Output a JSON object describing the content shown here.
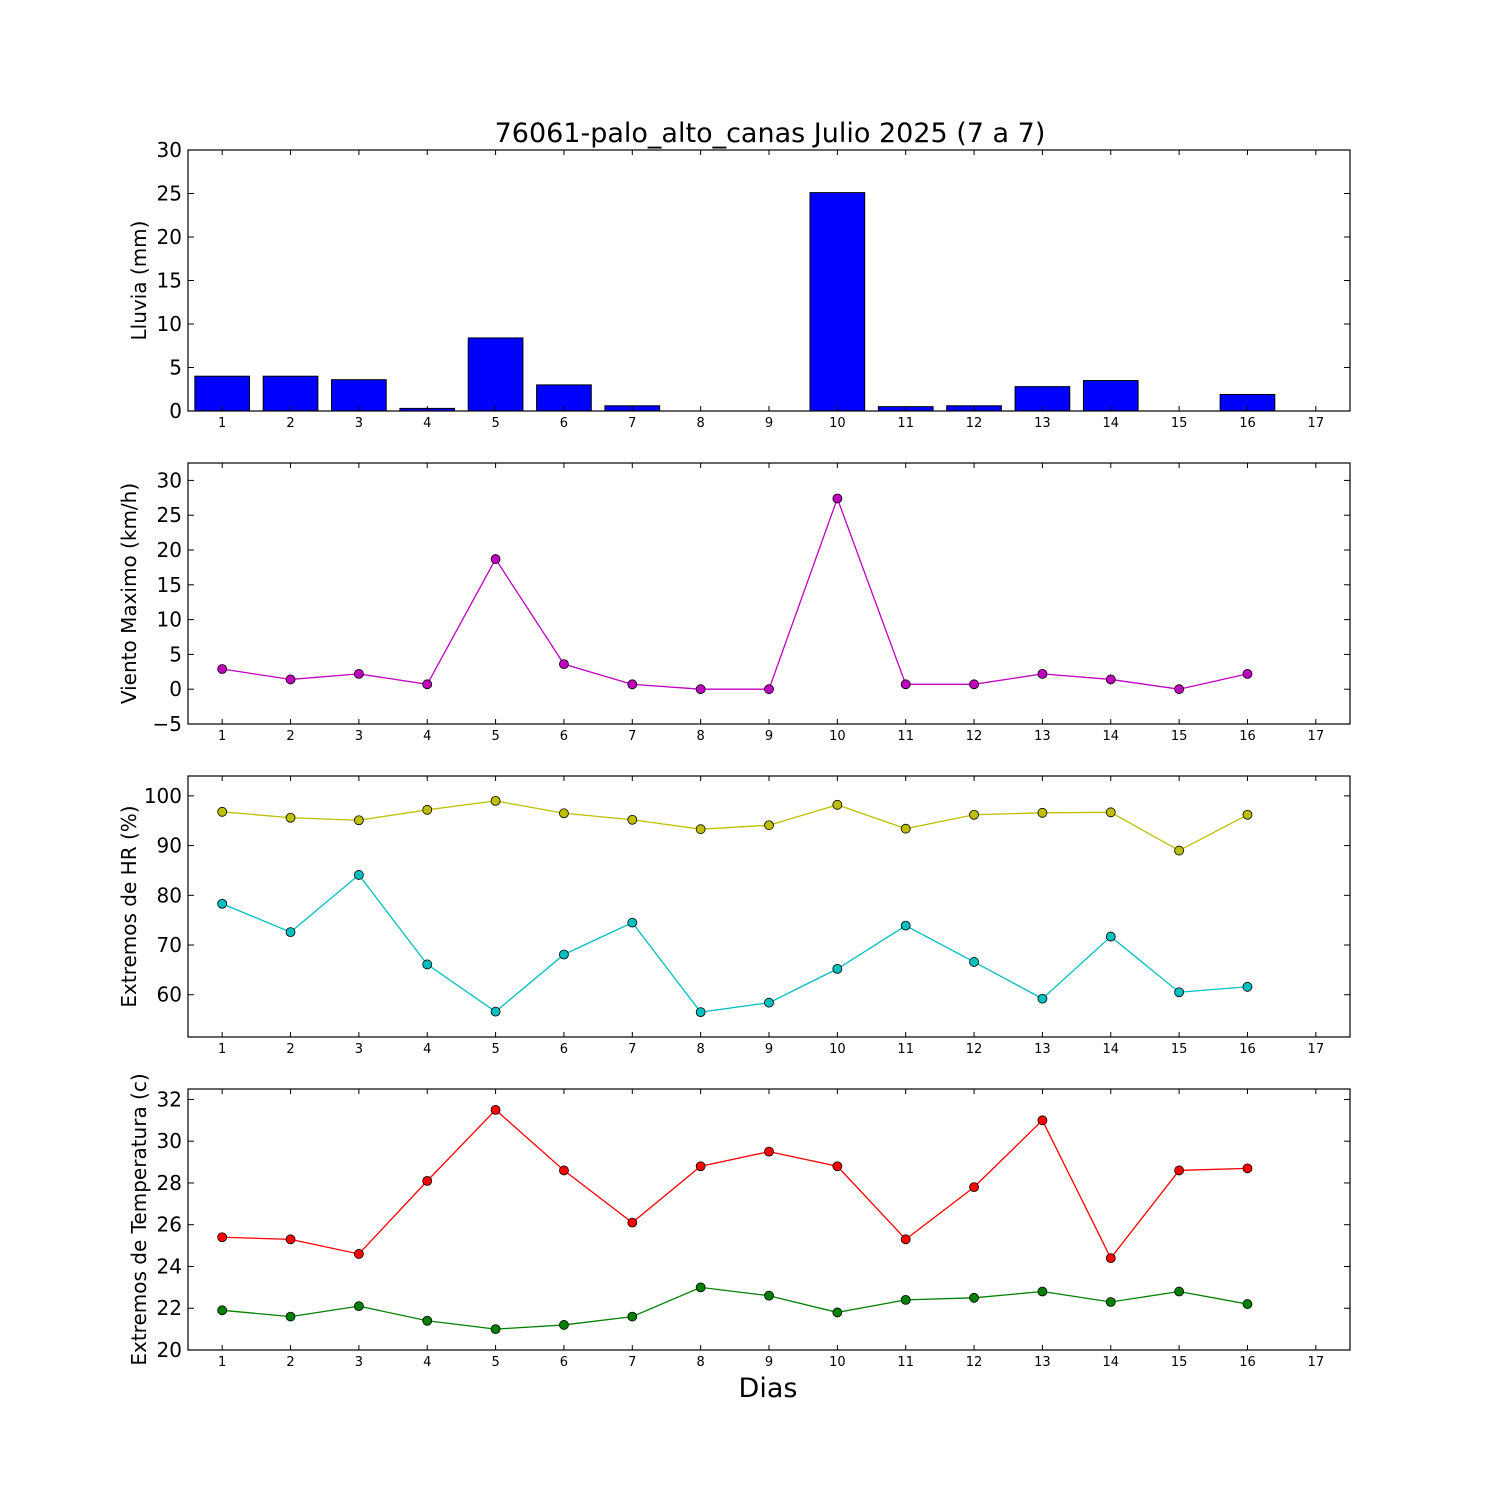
{
  "chart_data": [
    {
      "type": "bar",
      "title": "76061-palo_alto_canas Julio 2025  (7 a 7)",
      "ylabel": "Lluvia (mm)",
      "xlabel": "",
      "x": [
        1,
        2,
        3,
        4,
        5,
        6,
        7,
        8,
        9,
        10,
        11,
        12,
        13,
        14,
        15,
        16
      ],
      "xticks": [
        "1",
        "2",
        "3",
        "4",
        "5",
        "6",
        "7",
        "8",
        "9",
        "10",
        "11",
        "12",
        "13",
        "14",
        "15",
        "16",
        "17"
      ],
      "xlim": [
        0.5,
        17.5
      ],
      "ylim": [
        0,
        30
      ],
      "yticks": [
        "0",
        "5",
        "10",
        "15",
        "20",
        "25",
        "30"
      ],
      "series": [
        {
          "values": [
            4.0,
            4.0,
            3.6,
            0.3,
            8.4,
            3.0,
            0.6,
            0,
            0,
            25.1,
            0.5,
            0.6,
            2.8,
            3.5,
            0,
            1.9
          ],
          "color": "#0000ff"
        }
      ],
      "grid": false
    },
    {
      "type": "line",
      "ylabel": "Viento Maximo (km/h)",
      "xlabel": "",
      "x": [
        1,
        2,
        3,
        4,
        5,
        6,
        7,
        8,
        9,
        10,
        11,
        12,
        13,
        14,
        15,
        16
      ],
      "xticks": [
        "1",
        "2",
        "3",
        "4",
        "5",
        "6",
        "7",
        "8",
        "9",
        "10",
        "11",
        "12",
        "13",
        "14",
        "15",
        "16",
        "17"
      ],
      "xlim": [
        0.5,
        17.5
      ],
      "ylim": [
        -5,
        32.5
      ],
      "yticks": [
        "−5",
        "0",
        "5",
        "10",
        "15",
        "20",
        "25",
        "30"
      ],
      "series": [
        {
          "values": [
            2.9,
            1.4,
            2.2,
            0.7,
            18.7,
            3.6,
            0.7,
            0,
            0,
            27.4,
            0.7,
            0.7,
            2.2,
            1.4,
            0,
            2.2
          ],
          "color": "#bf00bf"
        }
      ],
      "grid": false
    },
    {
      "type": "line",
      "ylabel": "Extremos de HR (%)",
      "xlabel": "",
      "x": [
        1,
        2,
        3,
        4,
        5,
        6,
        7,
        8,
        9,
        10,
        11,
        12,
        13,
        14,
        15,
        16
      ],
      "xticks": [
        "1",
        "2",
        "3",
        "4",
        "5",
        "6",
        "7",
        "8",
        "9",
        "10",
        "11",
        "12",
        "13",
        "14",
        "15",
        "16",
        "17"
      ],
      "xlim": [
        0.5,
        17.5
      ],
      "ylim": [
        51.5,
        104
      ],
      "yticks": [
        "60",
        "70",
        "80",
        "90",
        "100"
      ],
      "series": [
        {
          "values": [
            96.8,
            95.6,
            95.1,
            97.2,
            99.0,
            96.5,
            95.2,
            93.3,
            94.1,
            98.2,
            93.4,
            96.2,
            96.6,
            96.7,
            89.0,
            96.2
          ],
          "color": "#bfbf00"
        },
        {
          "values": [
            78.3,
            72.6,
            84.1,
            66.1,
            56.6,
            68.1,
            74.5,
            56.5,
            58.4,
            65.2,
            73.9,
            66.6,
            59.2,
            71.7,
            60.5,
            61.6
          ],
          "color": "#00bfbf"
        }
      ],
      "grid": false
    },
    {
      "type": "line",
      "ylabel": "Extremos de Temperatura (c)",
      "xlabel": "Dias",
      "x": [
        1,
        2,
        3,
        4,
        5,
        6,
        7,
        8,
        9,
        10,
        11,
        12,
        13,
        14,
        15,
        16
      ],
      "xticks": [
        "1",
        "2",
        "3",
        "4",
        "5",
        "6",
        "7",
        "8",
        "9",
        "10",
        "11",
        "12",
        "13",
        "14",
        "15",
        "16",
        "17"
      ],
      "xlim": [
        0.5,
        17.5
      ],
      "ylim": [
        20,
        32.5
      ],
      "yticks": [
        "20",
        "22",
        "24",
        "26",
        "28",
        "30",
        "32"
      ],
      "series": [
        {
          "values": [
            25.4,
            25.3,
            24.6,
            28.1,
            31.5,
            28.6,
            26.1,
            28.8,
            29.5,
            28.8,
            25.3,
            27.8,
            31.0,
            24.4,
            28.6,
            28.7
          ],
          "color": "#ff0000"
        },
        {
          "values": [
            21.9,
            21.6,
            22.1,
            21.4,
            21.0,
            21.2,
            21.6,
            23.0,
            22.6,
            21.8,
            22.4,
            22.5,
            22.8,
            22.3,
            22.8,
            22.2
          ],
          "color": "#008000"
        }
      ],
      "grid": false
    }
  ]
}
